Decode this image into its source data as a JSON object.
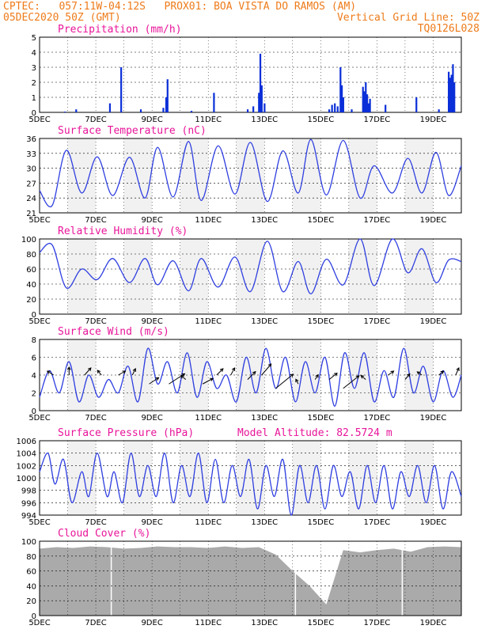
{
  "header": {
    "line1_left": "CPTEC:   057:11W-04:12S   PROX01: BOA VISTA DO RAMOS (AM)",
    "line2_left": "05DEC2020 50Z (GMT)",
    "line2_right": "Vertical Grid Line: 50Z",
    "line3_right": "TQ0126L028"
  },
  "colors": {
    "header": "#ee7b1a",
    "title": "#e8159a",
    "line": "#2f3fe0",
    "bar": "#0a2fd8",
    "cloud": "#aaaaaa",
    "grid": "#000000"
  },
  "x_ticks": [
    "5DEC",
    "7DEC",
    "9DEC",
    "11DEC",
    "13DEC",
    "15DEC",
    "17DEC",
    "19DEC"
  ],
  "chart_data": [
    {
      "id": "precip",
      "type": "bar",
      "title": "Precipitation (mm/h)",
      "ylim": [
        0,
        5
      ],
      "yticks": [
        "0",
        "1",
        "2",
        "3",
        "4",
        "5"
      ],
      "x_unit": "days since 5DEC",
      "bars": [
        [
          0.9,
          0.05
        ],
        [
          1.3,
          0.2
        ],
        [
          2.5,
          0.6
        ],
        [
          2.9,
          3.0
        ],
        [
          3.6,
          0.2
        ],
        [
          4.4,
          0.3
        ],
        [
          4.5,
          1.0
        ],
        [
          4.55,
          2.2
        ],
        [
          5.4,
          0.1
        ],
        [
          6.2,
          1.3
        ],
        [
          7.4,
          0.2
        ],
        [
          7.6,
          0.4
        ],
        [
          7.8,
          1.3
        ],
        [
          7.85,
          3.9
        ],
        [
          7.9,
          1.8
        ],
        [
          8.0,
          0.6
        ],
        [
          10.3,
          0.2
        ],
        [
          10.4,
          0.5
        ],
        [
          10.5,
          0.6
        ],
        [
          10.6,
          0.4
        ],
        [
          10.7,
          3.0
        ],
        [
          10.75,
          1.8
        ],
        [
          10.8,
          1.0
        ],
        [
          11.1,
          0.2
        ],
        [
          11.5,
          1.7
        ],
        [
          11.55,
          1.4
        ],
        [
          11.6,
          2.0
        ],
        [
          11.65,
          1.2
        ],
        [
          11.7,
          0.6
        ],
        [
          11.75,
          0.9
        ],
        [
          12.3,
          0.5
        ],
        [
          13.4,
          1.0
        ],
        [
          14.2,
          0.2
        ],
        [
          14.55,
          2.7
        ],
        [
          14.6,
          2.3
        ],
        [
          14.65,
          2.5
        ],
        [
          14.7,
          3.2
        ],
        [
          14.75,
          2.0
        ]
      ],
      "bg": "plain"
    },
    {
      "id": "temp",
      "type": "line",
      "title": "Surface Temperature (nC)",
      "ylim": [
        21,
        36
      ],
      "yticks": [
        "21",
        "24",
        "27",
        "30",
        "33",
        "36"
      ],
      "x": [
        0,
        0.45,
        0.95,
        1.5,
        2.05,
        2.6,
        3.2,
        3.75,
        4.2,
        4.75,
        5.3,
        5.75,
        6.35,
        6.95,
        7.5,
        8.1,
        8.65,
        9.2,
        9.65,
        10.2,
        10.8,
        11.4,
        11.9,
        12.55,
        13.1,
        13.6,
        14.1,
        14.55,
        15
      ],
      "y": [
        25.5,
        22.5,
        33.6,
        25.0,
        32.3,
        24.5,
        32.2,
        24.0,
        34.2,
        24.2,
        35.4,
        23.5,
        34.5,
        24.8,
        35.2,
        23.3,
        33.5,
        25.0,
        35.8,
        24.6,
        35.6,
        24.0,
        30.5,
        25.0,
        32.0,
        25.0,
        33.2,
        24.5,
        30.5
      ],
      "bg": "stripes"
    },
    {
      "id": "rh",
      "type": "line",
      "title": "Relative Humidity (%)",
      "ylim": [
        0,
        100
      ],
      "yticks": [
        "0",
        "20",
        "40",
        "60",
        "80",
        "100"
      ],
      "x": [
        0,
        0.45,
        0.95,
        1.5,
        2.05,
        2.6,
        3.2,
        3.75,
        4.2,
        4.75,
        5.3,
        5.75,
        6.35,
        6.95,
        7.5,
        8.1,
        8.65,
        9.2,
        9.65,
        10.2,
        10.8,
        11.4,
        11.9,
        12.55,
        13.1,
        13.6,
        14.1,
        14.55,
        15
      ],
      "y": [
        82,
        92,
        35,
        60,
        46,
        74,
        42,
        74,
        39,
        71,
        31,
        74,
        36,
        76,
        30,
        97,
        30,
        70,
        27,
        73,
        39,
        100,
        38,
        100,
        55,
        87,
        42,
        72,
        70
      ],
      "bg": "stripes"
    },
    {
      "id": "wind",
      "type": "line",
      "title": "Surface Wind (m/s)",
      "ylim": [
        0,
        8
      ],
      "yticks": [
        "0",
        "2",
        "4",
        "6",
        "8"
      ],
      "x": [
        0,
        0.35,
        0.7,
        1.05,
        1.4,
        1.75,
        2.1,
        2.45,
        2.8,
        3.15,
        3.5,
        3.85,
        4.2,
        4.55,
        4.9,
        5.25,
        5.6,
        5.95,
        6.3,
        6.65,
        7.0,
        7.35,
        7.7,
        8.05,
        8.4,
        8.75,
        9.1,
        9.45,
        9.8,
        10.15,
        10.5,
        10.85,
        11.2,
        11.55,
        11.9,
        12.25,
        12.6,
        12.95,
        13.3,
        13.65,
        14.0,
        14.35,
        14.7,
        15
      ],
      "y": [
        1.5,
        4.5,
        2.0,
        5.5,
        1.0,
        4.0,
        1.5,
        3.5,
        2.0,
        5.0,
        1.0,
        7.0,
        3.0,
        5.5,
        2.0,
        6.5,
        1.5,
        5.5,
        2.5,
        4.0,
        1.0,
        6.0,
        2.0,
        7.0,
        2.5,
        6.0,
        1.0,
        5.5,
        2.0,
        6.0,
        0.5,
        6.5,
        2.5,
        6.5,
        1.0,
        4.5,
        1.5,
        7.0,
        2.0,
        5.0,
        1.0,
        4.5,
        1.5,
        4.0
      ],
      "vectors": [
        [
          0.5,
          4.0,
          -0.8,
          0.5
        ],
        [
          1.05,
          4.0,
          0,
          1.0
        ],
        [
          1.6,
          4.0,
          0.8,
          0.9
        ],
        [
          2.2,
          4.0,
          -0.5,
          0.6
        ],
        [
          2.8,
          4.0,
          0.9,
          0.5
        ],
        [
          3.3,
          4.0,
          0.4,
          0.8
        ],
        [
          3.9,
          3.0,
          1.2,
          0.8
        ],
        [
          4.6,
          3.0,
          2.0,
          1.3
        ],
        [
          5.2,
          3.5,
          -0.6,
          0.5
        ],
        [
          5.8,
          3.0,
          1.3,
          0.7
        ],
        [
          6.3,
          4.0,
          0.8,
          0.8
        ],
        [
          6.8,
          4.0,
          0.5,
          0.9
        ],
        [
          7.4,
          3.5,
          1.0,
          1.0
        ],
        [
          7.9,
          4.0,
          1.2,
          1.4
        ],
        [
          8.4,
          2.5,
          2.2,
          1.8
        ],
        [
          9.2,
          3.0,
          -0.3,
          0.6
        ],
        [
          9.8,
          3.5,
          0.4,
          0.6
        ],
        [
          10.3,
          3.5,
          1.0,
          0.8
        ],
        [
          10.8,
          2.5,
          2.0,
          1.6
        ],
        [
          11.6,
          3.5,
          -0.6,
          0.5
        ],
        [
          12.4,
          4.0,
          0.7,
          0.5
        ],
        [
          13.0,
          3.5,
          0.6,
          0.7
        ],
        [
          13.6,
          4.0,
          -0.6,
          0.4
        ],
        [
          14.2,
          4.0,
          0.6,
          0.5
        ],
        [
          14.8,
          4.0,
          0.4,
          0.9
        ]
      ],
      "bg": "stripes"
    },
    {
      "id": "pres",
      "type": "line",
      "title": "Surface Pressure (hPa)",
      "annotation": "Model Altitude: 82.5724 m",
      "ylim": [
        994,
        1006
      ],
      "yticks": [
        "994",
        "996",
        "998",
        "1000",
        "1002",
        "1004",
        "1006"
      ],
      "x": [
        0,
        0.3,
        0.55,
        0.85,
        1.15,
        1.5,
        1.75,
        2.05,
        2.4,
        2.65,
        2.95,
        3.25,
        3.55,
        3.85,
        4.15,
        4.45,
        4.75,
        5.05,
        5.35,
        5.65,
        5.95,
        6.25,
        6.55,
        6.85,
        7.15,
        7.45,
        7.75,
        8.05,
        8.35,
        8.65,
        8.95,
        9.25,
        9.55,
        9.85,
        10.15,
        10.45,
        10.75,
        11.05,
        11.35,
        11.65,
        11.95,
        12.25,
        12.55,
        12.85,
        13.15,
        13.45,
        13.75,
        14.05,
        14.35,
        14.65,
        15
      ],
      "y": [
        1001,
        1004,
        999,
        1003,
        996,
        1001,
        997,
        1004,
        997,
        1001,
        996,
        1004,
        997,
        1002,
        997,
        1004,
        996,
        1002,
        997,
        1004,
        996,
        1003,
        996,
        1002,
        997,
        1003,
        995,
        1002,
        997,
        1003,
        994,
        1002,
        996,
        1002,
        995,
        1002,
        997,
        1001,
        995,
        1002,
        996,
        1002,
        995,
        1001,
        997,
        1002,
        996,
        1002,
        995,
        1001,
        997
      ],
      "bg": "stripes"
    },
    {
      "id": "cloud",
      "type": "area",
      "title": "Cloud Cover (%)",
      "ylim": [
        0,
        100
      ],
      "yticks": [
        "0",
        "20",
        "40",
        "60",
        "80",
        "100"
      ],
      "x": [
        0,
        0.6,
        1.2,
        1.8,
        2.4,
        3.0,
        3.6,
        4.2,
        4.8,
        5.4,
        6.0,
        6.6,
        7.2,
        7.8,
        8.4,
        9.0,
        9.6,
        10.2,
        10.8,
        11.4,
        12.0,
        12.6,
        13.2,
        13.8,
        14.4,
        15
      ],
      "y": [
        90,
        92,
        91,
        93,
        92,
        90,
        91,
        93,
        92,
        92,
        91,
        93,
        91,
        92,
        82,
        60,
        40,
        15,
        88,
        85,
        88,
        90,
        86,
        92,
        93,
        92
      ],
      "bg": "plain"
    }
  ]
}
